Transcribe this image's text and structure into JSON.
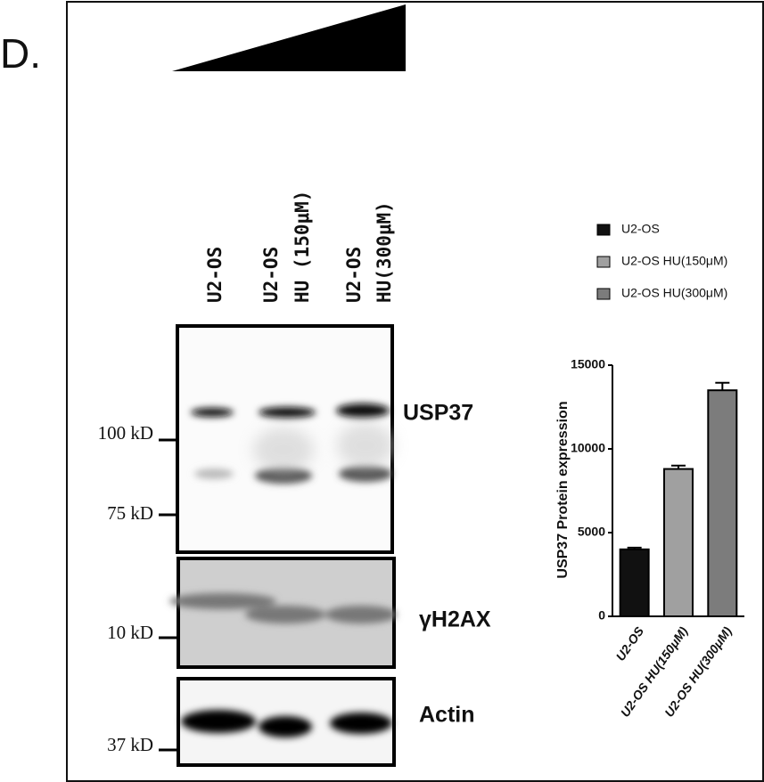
{
  "panel_label": "D.",
  "lanes": [
    [
      "U2-OS"
    ],
    [
      "U2-OS",
      "HU (150μM)"
    ],
    [
      "U2-OS",
      "HU(300μM)"
    ]
  ],
  "blots": [
    "USP37",
    "γH2AX",
    "Actin"
  ],
  "markers": [
    "100 kD",
    "75 kD",
    "10 kD",
    "37 kD"
  ],
  "chart_data": {
    "type": "bar",
    "y_label": "USP37 Protein expression",
    "categories": [
      "U2-OS",
      "U2-OS HU(150μM)",
      "U2-OS HU(300μM)"
    ],
    "values": [
      4000,
      8800,
      13500
    ],
    "errors": [
      100,
      200,
      450
    ],
    "colors": [
      "#111111",
      "#a0a0a0",
      "#7c7c7c"
    ],
    "ylim": [
      0,
      15000
    ],
    "yticks": [
      0,
      5000,
      10000,
      15000
    ]
  }
}
